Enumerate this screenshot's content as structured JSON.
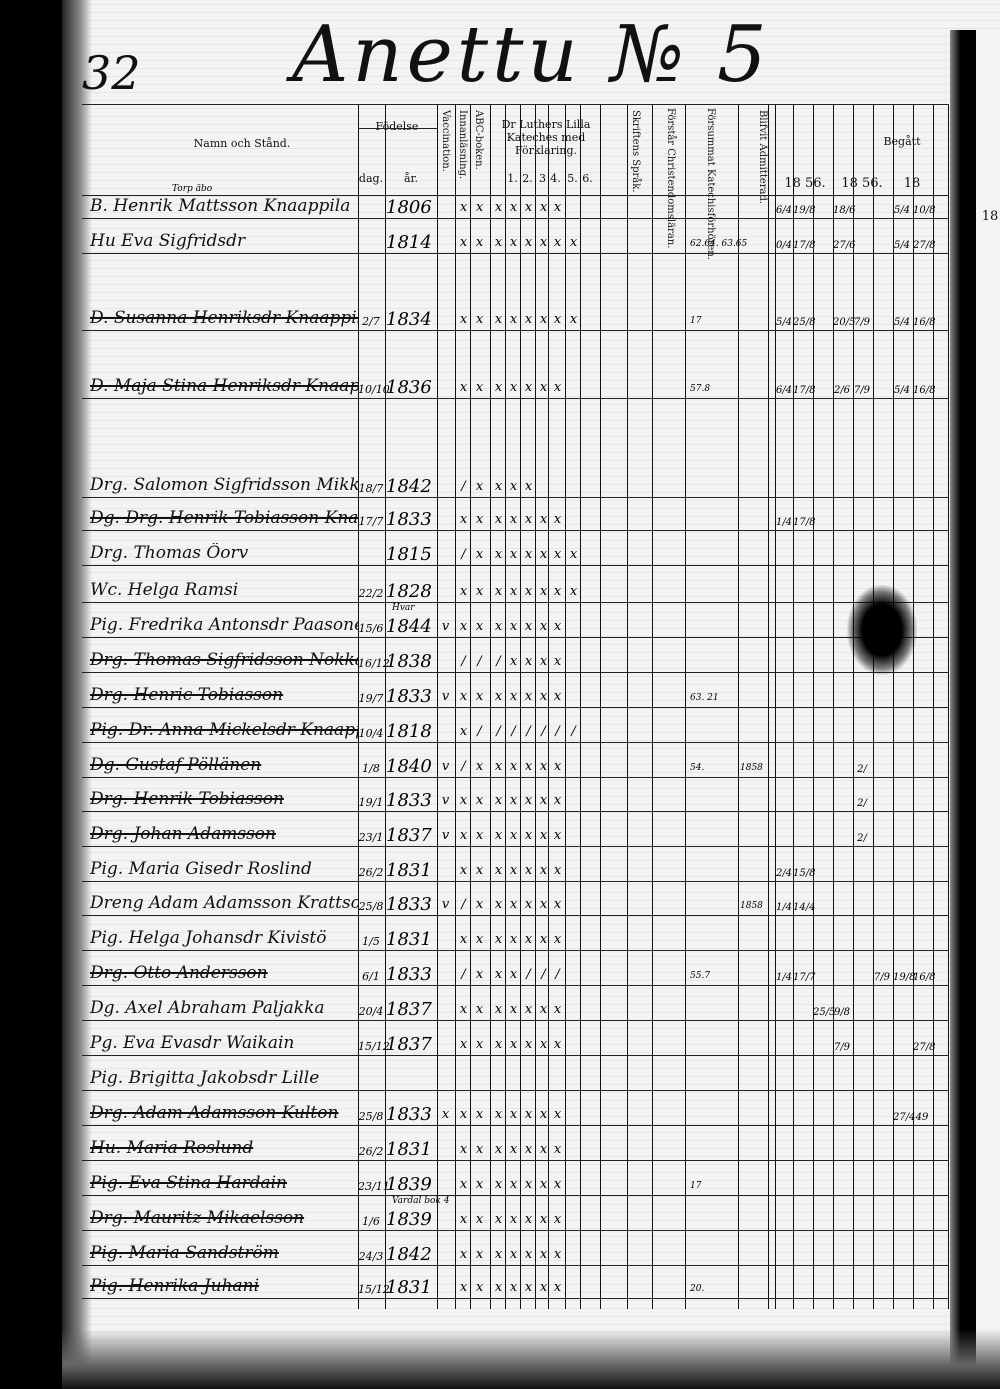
{
  "page_number": "32",
  "title": "Anettu № 5",
  "headers": {
    "name": "Namn och Stånd.",
    "birth": "Födelse",
    "day": "dag.",
    "year": "år.",
    "vaccination": "Vaccination.",
    "reading": "Innanläsning.",
    "abc": "ABC-boken.",
    "catechism": "Dr Luthers Lilla Kateches med Förklaring.",
    "cat_cols": [
      "1.",
      "2.",
      "3",
      "4.",
      "5.",
      "6."
    ],
    "scripture_lang": "Skriftens Språk.",
    "understands": "Förstår Christendomsläran.",
    "missed": "Försummat Katechisförhören.",
    "admitted": "Blifvit Admitterad.",
    "communion": "Begått",
    "communion_years": [
      "18 56.",
      "18 56.",
      "18",
      "18"
    ]
  },
  "rows": [
    {
      "above": "Torp äbo",
      "name": "B. Henrik Mattsson Knaappila",
      "day": "",
      "year": "1806",
      "marks": [
        "",
        "x",
        "x",
        "x",
        "x",
        "x",
        "x",
        "x",
        "",
        ""
      ],
      "note": "",
      "adm": "",
      "begatt": [
        "6/4",
        "19/8",
        "",
        "18/6",
        "",
        "",
        "5/4",
        "10/8"
      ]
    },
    {
      "above": "",
      "name": "Hu Eva Sigfridsdr",
      "day": "",
      "year": "1814",
      "marks": [
        "",
        "x",
        "x",
        "x",
        "x",
        "x",
        "x",
        "x",
        "x",
        ""
      ],
      "note": "62.64. 63.65",
      "adm": "",
      "begatt": [
        "0/4",
        "17/8",
        "",
        "27/6",
        "",
        "",
        "5/4",
        "27/8"
      ]
    },
    {
      "above": "",
      "name": "D. Susanna Henriksdr Knaappila",
      "day": "2/7",
      "year": "1834",
      "marks": [
        "",
        "x",
        "x",
        "x",
        "x",
        "x",
        "x",
        "x",
        "x",
        ""
      ],
      "note": "17",
      "adm": "",
      "begatt": [
        "5/4",
        "25/8",
        "",
        "20/5",
        "7/9",
        "",
        "5/4",
        "16/8"
      ],
      "strike": true
    },
    {
      "above": "",
      "name": "D. Maja Stina Henriksdr Knaappila",
      "day": "10/10",
      "year": "1836",
      "marks": [
        "",
        "x",
        "x",
        "x",
        "x",
        "x",
        "x",
        "x",
        "",
        ""
      ],
      "note": "57.8",
      "adm": "",
      "begatt": [
        "6/4",
        "17/8",
        "",
        "2/6",
        "7/9",
        "",
        "5/4",
        "16/8"
      ],
      "strike": true
    },
    {
      "above": "",
      "name": "Drg. Salomon Sigfridsson Mikkonen",
      "day": "18/7",
      "year": "1842",
      "marks": [
        "",
        "/",
        "x",
        "x",
        "x",
        "x",
        "",
        "",
        "",
        ""
      ],
      "note": "",
      "adm": "",
      "begatt": []
    },
    {
      "above": "",
      "name": "Dg. Drg. Henrik Tobiasson Knaappila",
      "day": "17/7",
      "year": "1833",
      "marks": [
        "",
        "x",
        "x",
        "x",
        "x",
        "x",
        "x",
        "x",
        "",
        ""
      ],
      "note": "",
      "adm": "",
      "begatt": [
        "1/4",
        "17/8"
      ],
      "strike": true
    },
    {
      "above": "",
      "name": "Drg. Thomas Öorv",
      "day": "",
      "year": "1815",
      "marks": [
        "",
        "/",
        "x",
        "x",
        "x",
        "x",
        "x",
        "x",
        "x",
        ""
      ],
      "note": "",
      "adm": "",
      "begatt": []
    },
    {
      "above": "",
      "name": "Wc. Helga Ramsi",
      "day": "22/2",
      "year": "1828",
      "marks": [
        "",
        "x",
        "x",
        "x",
        "x",
        "x",
        "x",
        "x",
        "x",
        ""
      ],
      "note": "",
      "adm": "",
      "begatt": []
    },
    {
      "above": "Hvar",
      "name": "Pig. Fredrika Antonsdr Paasonen",
      "day": "15/6",
      "year": "1844",
      "marks": [
        "v",
        "x",
        "x",
        "x",
        "x",
        "x",
        "x",
        "x",
        "",
        ""
      ],
      "note": "",
      "adm": "",
      "begatt": []
    },
    {
      "above": "",
      "name": "Drg. Thomas Sigfridsson Nokka",
      "day": "16/12",
      "year": "1838",
      "marks": [
        "",
        "/",
        "/",
        "/",
        "x",
        "x",
        "x",
        "x",
        "",
        ""
      ],
      "note": "",
      "adm": "",
      "begatt": [],
      "strike": true
    },
    {
      "above": "",
      "name": "Drg. Henric Tobiasson",
      "day": "19/7",
      "year": "1833",
      "marks": [
        "v",
        "x",
        "x",
        "x",
        "x",
        "x",
        "x",
        "x",
        "",
        ""
      ],
      "note": "63. 21",
      "adm": "",
      "begatt": [],
      "strike": true
    },
    {
      "above": "",
      "name": "Pig. Dr. Anna Mickelsdr Knaappila",
      "day": "10/4",
      "year": "1818",
      "marks": [
        "",
        "x",
        "/",
        "/",
        "/",
        "/",
        "/",
        "/",
        "/",
        ""
      ],
      "note": "",
      "adm": "",
      "begatt": [],
      "strike": true
    },
    {
      "above": "",
      "name": "Dg. Gustaf Pöllänen",
      "day": "1/8",
      "year": "1840",
      "marks": [
        "v",
        "/",
        "x",
        "x",
        "x",
        "x",
        "x",
        "x",
        "",
        ""
      ],
      "note": "54.",
      "adm": "1858",
      "begatt": [
        "",
        "",
        "",
        "",
        "2/",
        "",
        "",
        ""
      ],
      "strike": true
    },
    {
      "above": "",
      "name": "Drg. Henrik Tobiasson",
      "day": "19/1",
      "year": "1833",
      "marks": [
        "v",
        "x",
        "x",
        "x",
        "x",
        "x",
        "x",
        "x",
        "",
        ""
      ],
      "note": "",
      "adm": "",
      "begatt": [
        "",
        "",
        "",
        "",
        "2/",
        "",
        "",
        ""
      ],
      "strike": true
    },
    {
      "above": "",
      "name": "Drg. Johan Adamsson",
      "day": "23/1",
      "year": "1837",
      "marks": [
        "v",
        "x",
        "x",
        "x",
        "x",
        "x",
        "x",
        "x",
        "",
        ""
      ],
      "note": "",
      "adm": "",
      "begatt": [
        "",
        "",
        "",
        "",
        "2/",
        "",
        "",
        ""
      ],
      "strike": true
    },
    {
      "above": "",
      "name": "Pig. Maria Gisedr Roslind",
      "day": "26/2",
      "year": "1831",
      "marks": [
        "",
        "x",
        "x",
        "x",
        "x",
        "x",
        "x",
        "x",
        "",
        ""
      ],
      "note": "",
      "adm": "",
      "begatt": [
        "2/4",
        "15/8"
      ]
    },
    {
      "above": "",
      "name": "Dreng Adam Adamsson Krattso",
      "day": "25/8",
      "year": "1833",
      "marks": [
        "v",
        "/",
        "x",
        "x",
        "x",
        "x",
        "x",
        "x",
        "",
        ""
      ],
      "note": "",
      "adm": "1858",
      "begatt": [
        "1/4",
        "14/4"
      ]
    },
    {
      "above": "",
      "name": "Pig. Helga Johansdr Kivistö",
      "day": "1/5",
      "year": "1831",
      "marks": [
        "",
        "x",
        "x",
        "x",
        "x",
        "x",
        "x",
        "x",
        "",
        ""
      ],
      "note": "",
      "adm": "",
      "begatt": []
    },
    {
      "above": "",
      "name": "Drg. Otto Andersson",
      "day": "6/1",
      "year": "1833",
      "marks": [
        "",
        "/",
        "x",
        "x",
        "x",
        "/",
        "/",
        "/",
        "",
        ""
      ],
      "note": "55.7",
      "adm": "",
      "begatt": [
        "1/4",
        "17/7",
        "",
        "",
        "",
        "7/9",
        "19/8",
        "16/8"
      ],
      "strike": true
    },
    {
      "above": "",
      "name": "Dg. Axel Abraham Paljakka",
      "day": "20/4",
      "year": "1837",
      "marks": [
        "",
        "x",
        "x",
        "x",
        "x",
        "x",
        "x",
        "x",
        "",
        ""
      ],
      "note": "",
      "adm": "",
      "begatt": [
        "",
        "",
        "25/5",
        "9/8"
      ]
    },
    {
      "above": "",
      "name": "Pg. Eva Evasdr Waikain",
      "day": "15/12",
      "year": "1837",
      "marks": [
        "",
        "x",
        "x",
        "x",
        "x",
        "x",
        "x",
        "x",
        "",
        ""
      ],
      "note": "",
      "adm": "",
      "begatt": [
        "",
        "",
        "",
        "7/9",
        "",
        "",
        "",
        "27/8"
      ]
    },
    {
      "above": "",
      "name": "Pig. Brigitta Jakobsdr Lille",
      "day": "",
      "year": "",
      "marks": [
        "",
        "",
        "",
        "",
        "",
        "",
        "",
        "",
        "",
        ""
      ],
      "note": "",
      "adm": "",
      "begatt": []
    },
    {
      "above": "",
      "name": "Drg. Adam Adamsson Kulton",
      "day": "25/8",
      "year": "1833",
      "marks": [
        "x",
        "x",
        "x",
        "x",
        "x",
        "x",
        "x",
        "x",
        "",
        ""
      ],
      "note": "",
      "adm": "",
      "begatt": [
        "",
        "",
        "",
        "",
        "",
        "",
        "27/4",
        "49"
      ],
      "strike": true
    },
    {
      "above": "",
      "name": "Hu. Maria Roslund",
      "day": "26/2",
      "year": "1831",
      "marks": [
        "",
        "x",
        "x",
        "x",
        "x",
        "x",
        "x",
        "x",
        "",
        ""
      ],
      "note": "",
      "adm": "",
      "begatt": [],
      "strike": true
    },
    {
      "above": "",
      "name": "Pig. Eva Stina Hardain",
      "day": "23/11",
      "year": "1839",
      "marks": [
        "",
        "x",
        "x",
        "x",
        "x",
        "x",
        "x",
        "x",
        "",
        ""
      ],
      "note": "17",
      "adm": "",
      "begatt": [],
      "strike": true
    },
    {
      "above": "Vardal bok 4",
      "name": "Drg. Mauritz Mikaelsson",
      "day": "1/6",
      "year": "1839",
      "marks": [
        "",
        "x",
        "x",
        "x",
        "x",
        "x",
        "x",
        "x",
        "",
        ""
      ],
      "note": "",
      "adm": "",
      "begatt": [],
      "strike": true
    },
    {
      "above": "",
      "name": "Pig. Maria Sandström",
      "day": "24/3",
      "year": "1842",
      "marks": [
        "",
        "x",
        "x",
        "x",
        "x",
        "x",
        "x",
        "x",
        "",
        ""
      ],
      "note": "",
      "adm": "",
      "begatt": [],
      "strike": true
    },
    {
      "above": "",
      "name": "Pig. Henrika Juhani",
      "day": "15/12",
      "year": "1831",
      "marks": [
        "",
        "x",
        "x",
        "x",
        "x",
        "x",
        "x",
        "x",
        "",
        ""
      ],
      "note": "20.",
      "adm": "",
      "begatt": [],
      "strike": true
    }
  ],
  "next_page_header": "18"
}
